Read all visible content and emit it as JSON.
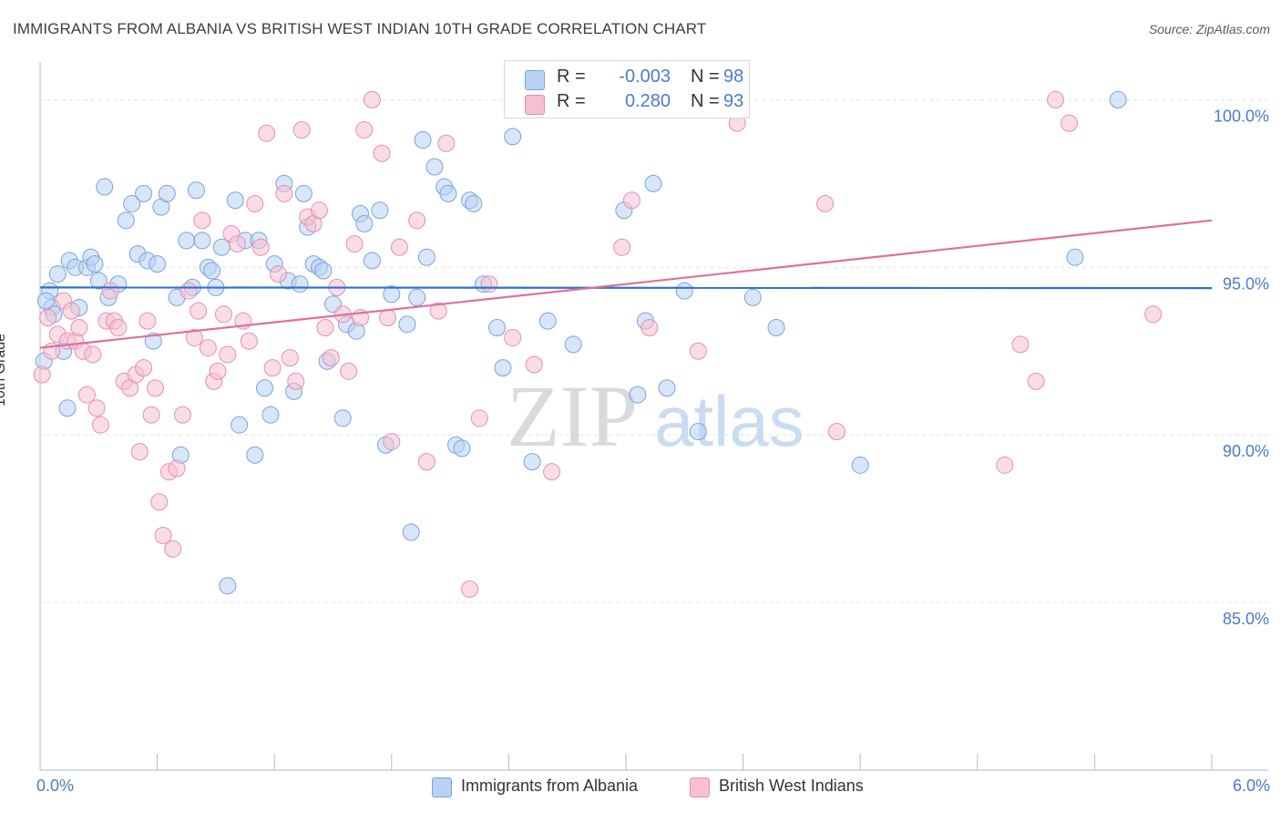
{
  "title": "IMMIGRANTS FROM ALBANIA VS BRITISH WEST INDIAN 10TH GRADE CORRELATION CHART",
  "source": "Source: ZipAtlas.com",
  "watermark": {
    "zip": "ZIP",
    "atlas": "atlas"
  },
  "colors": {
    "blue": "#4a7bd0",
    "blue_fill": "#b8d2f4",
    "blue_line": "#2f6fce",
    "pink_fill": "#f6c0d2",
    "pink_line": "#e0709a",
    "grid": "#e2e4e7"
  },
  "legend_top": {
    "rows": [
      {
        "r_label": "R =",
        "r_value": "-0.003",
        "n_label": "N =",
        "n_value": "98"
      },
      {
        "r_label": "R =",
        "r_value": "0.280",
        "n_label": "N =",
        "n_value": "93"
      }
    ]
  },
  "legend_bottom": {
    "items": [
      "Immigrants from Albania",
      "British West Indians"
    ]
  },
  "chart_data": {
    "type": "scatter",
    "xlabel": "",
    "ylabel": "10th Grade",
    "x_tick_labels": [
      "0.0%",
      "6.0%"
    ],
    "y_tick_labels": [
      "100.0%",
      "95.0%",
      "90.0%",
      "85.0%"
    ],
    "xlim": [
      0,
      6
    ],
    "ylim": [
      80,
      100.8
    ],
    "grid": true,
    "series": [
      {
        "name": "Immigrants from Albania",
        "color": "#b8d2f4",
        "trend": {
          "x": [
            0,
            6
          ],
          "y": [
            94.4,
            94.38
          ]
        },
        "points": [
          [
            0.02,
            92.2
          ],
          [
            0.05,
            94.3
          ],
          [
            0.06,
            93.8
          ],
          [
            0.09,
            94.8
          ],
          [
            0.12,
            92.5
          ],
          [
            0.14,
            90.8
          ],
          [
            0.15,
            95.2
          ],
          [
            0.18,
            95.0
          ],
          [
            0.2,
            93.8
          ],
          [
            0.24,
            95.0
          ],
          [
            0.26,
            95.3
          ],
          [
            0.28,
            95.1
          ],
          [
            0.3,
            94.6
          ],
          [
            0.33,
            97.4
          ],
          [
            0.35,
            94.1
          ],
          [
            0.4,
            94.5
          ],
          [
            0.44,
            96.4
          ],
          [
            0.47,
            96.9
          ],
          [
            0.5,
            95.4
          ],
          [
            0.53,
            97.2
          ],
          [
            0.55,
            95.2
          ],
          [
            0.58,
            92.8
          ],
          [
            0.6,
            95.1
          ],
          [
            0.62,
            96.8
          ],
          [
            0.65,
            97.2
          ],
          [
            0.7,
            94.1
          ],
          [
            0.72,
            89.4
          ],
          [
            0.75,
            95.8
          ],
          [
            0.78,
            94.4
          ],
          [
            0.8,
            97.3
          ],
          [
            0.83,
            95.8
          ],
          [
            0.86,
            95.0
          ],
          [
            0.88,
            94.9
          ],
          [
            0.9,
            94.4
          ],
          [
            0.93,
            95.6
          ],
          [
            0.96,
            85.5
          ],
          [
            1.0,
            97.0
          ],
          [
            1.02,
            90.3
          ],
          [
            1.05,
            95.8
          ],
          [
            1.1,
            89.4
          ],
          [
            1.12,
            95.8
          ],
          [
            1.15,
            91.4
          ],
          [
            1.18,
            90.6
          ],
          [
            1.2,
            95.1
          ],
          [
            1.25,
            97.5
          ],
          [
            1.27,
            94.6
          ],
          [
            1.3,
            91.3
          ],
          [
            1.33,
            94.5
          ],
          [
            1.35,
            97.2
          ],
          [
            1.37,
            96.2
          ],
          [
            1.4,
            95.1
          ],
          [
            1.43,
            95.0
          ],
          [
            1.45,
            94.9
          ],
          [
            1.47,
            92.2
          ],
          [
            1.5,
            93.9
          ],
          [
            1.55,
            90.5
          ],
          [
            1.57,
            93.3
          ],
          [
            1.62,
            93.1
          ],
          [
            1.64,
            96.6
          ],
          [
            1.66,
            96.3
          ],
          [
            1.7,
            95.2
          ],
          [
            1.74,
            96.7
          ],
          [
            1.77,
            89.7
          ],
          [
            1.8,
            94.2
          ],
          [
            1.88,
            93.3
          ],
          [
            1.9,
            87.1
          ],
          [
            1.93,
            94.1
          ],
          [
            1.96,
            98.8
          ],
          [
            1.98,
            95.3
          ],
          [
            2.02,
            98.0
          ],
          [
            2.07,
            97.4
          ],
          [
            2.09,
            97.2
          ],
          [
            2.13,
            89.7
          ],
          [
            2.16,
            89.6
          ],
          [
            2.2,
            97.0
          ],
          [
            2.22,
            96.9
          ],
          [
            2.27,
            94.5
          ],
          [
            2.34,
            93.2
          ],
          [
            2.37,
            92.0
          ],
          [
            2.42,
            98.9
          ],
          [
            2.52,
            89.2
          ],
          [
            2.6,
            93.4
          ],
          [
            2.64,
            100.0
          ],
          [
            2.73,
            92.7
          ],
          [
            2.99,
            96.7
          ],
          [
            3.06,
            91.2
          ],
          [
            3.1,
            93.4
          ],
          [
            3.14,
            97.5
          ],
          [
            3.21,
            91.4
          ],
          [
            3.3,
            94.3
          ],
          [
            3.37,
            90.1
          ],
          [
            3.65,
            94.1
          ],
          [
            3.77,
            93.2
          ],
          [
            4.2,
            89.1
          ],
          [
            5.3,
            95.3
          ],
          [
            5.52,
            100.0
          ],
          [
            0.07,
            93.6
          ],
          [
            0.03,
            94.0
          ]
        ]
      },
      {
        "name": "British West Indians",
        "color": "#f6c0d2",
        "trend": {
          "x": [
            0,
            6
          ],
          "y": [
            92.6,
            96.4
          ]
        },
        "points": [
          [
            0.01,
            91.8
          ],
          [
            0.04,
            93.5
          ],
          [
            0.06,
            92.5
          ],
          [
            0.09,
            93.0
          ],
          [
            0.12,
            94.0
          ],
          [
            0.14,
            92.8
          ],
          [
            0.16,
            93.7
          ],
          [
            0.18,
            92.8
          ],
          [
            0.2,
            93.2
          ],
          [
            0.22,
            92.5
          ],
          [
            0.24,
            91.2
          ],
          [
            0.27,
            92.4
          ],
          [
            0.29,
            90.8
          ],
          [
            0.31,
            90.3
          ],
          [
            0.34,
            93.4
          ],
          [
            0.36,
            94.3
          ],
          [
            0.38,
            93.4
          ],
          [
            0.4,
            93.2
          ],
          [
            0.43,
            91.6
          ],
          [
            0.46,
            91.4
          ],
          [
            0.49,
            91.8
          ],
          [
            0.51,
            89.5
          ],
          [
            0.53,
            92.0
          ],
          [
            0.55,
            93.4
          ],
          [
            0.57,
            90.6
          ],
          [
            0.59,
            91.4
          ],
          [
            0.61,
            88.0
          ],
          [
            0.63,
            87.0
          ],
          [
            0.66,
            88.9
          ],
          [
            0.68,
            86.6
          ],
          [
            0.7,
            89.0
          ],
          [
            0.73,
            90.6
          ],
          [
            0.76,
            94.3
          ],
          [
            0.79,
            92.9
          ],
          [
            0.81,
            93.7
          ],
          [
            0.83,
            96.4
          ],
          [
            0.86,
            92.6
          ],
          [
            0.89,
            91.6
          ],
          [
            0.91,
            91.9
          ],
          [
            0.94,
            93.6
          ],
          [
            0.96,
            92.4
          ],
          [
            0.98,
            96.0
          ],
          [
            1.01,
            95.7
          ],
          [
            1.04,
            93.4
          ],
          [
            1.07,
            92.8
          ],
          [
            1.1,
            96.9
          ],
          [
            1.13,
            95.6
          ],
          [
            1.16,
            99.0
          ],
          [
            1.19,
            92.0
          ],
          [
            1.22,
            94.8
          ],
          [
            1.25,
            97.2
          ],
          [
            1.28,
            92.3
          ],
          [
            1.31,
            91.6
          ],
          [
            1.34,
            99.1
          ],
          [
            1.37,
            96.5
          ],
          [
            1.4,
            96.3
          ],
          [
            1.43,
            96.7
          ],
          [
            1.46,
            93.2
          ],
          [
            1.49,
            92.3
          ],
          [
            1.52,
            94.4
          ],
          [
            1.55,
            93.6
          ],
          [
            1.58,
            91.9
          ],
          [
            1.61,
            95.7
          ],
          [
            1.64,
            93.5
          ],
          [
            1.66,
            99.1
          ],
          [
            1.7,
            100.0
          ],
          [
            1.75,
            98.4
          ],
          [
            1.78,
            93.5
          ],
          [
            1.8,
            89.8
          ],
          [
            1.84,
            95.6
          ],
          [
            1.93,
            96.4
          ],
          [
            1.98,
            89.2
          ],
          [
            2.04,
            93.7
          ],
          [
            2.08,
            98.7
          ],
          [
            2.2,
            85.4
          ],
          [
            2.25,
            90.5
          ],
          [
            2.3,
            94.5
          ],
          [
            2.42,
            92.9
          ],
          [
            2.53,
            92.1
          ],
          [
            2.62,
            88.9
          ],
          [
            2.98,
            95.6
          ],
          [
            3.03,
            97.0
          ],
          [
            3.12,
            93.2
          ],
          [
            3.37,
            92.5
          ],
          [
            3.57,
            99.3
          ],
          [
            4.02,
            96.9
          ],
          [
            4.08,
            90.1
          ],
          [
            4.94,
            89.1
          ],
          [
            5.02,
            92.7
          ],
          [
            5.1,
            91.6
          ],
          [
            5.2,
            100.0
          ],
          [
            5.27,
            99.3
          ],
          [
            5.7,
            93.6
          ]
        ]
      }
    ]
  }
}
